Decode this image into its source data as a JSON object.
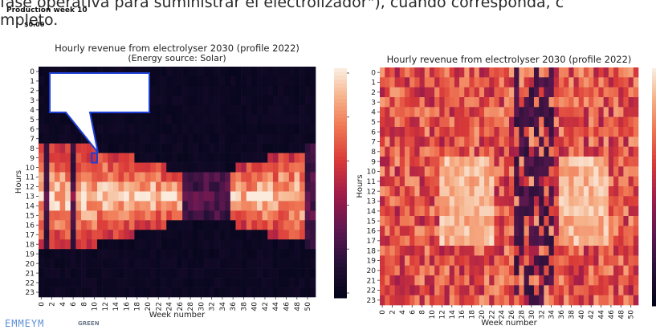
{
  "page": {
    "top_text_line1": "fase operativa para suministrar el electrolizador\"), cuando corresponda, c",
    "top_text_line2": "mpleto.",
    "logo_text": "EMMEYM",
    "logo_sub": "GREEN"
  },
  "tooltip": {
    "title": "Production week 10",
    "value": "$0.00"
  },
  "chart_data": [
    {
      "type": "heatmap",
      "title": "Hourly revenue from electrolyser 2030 (profile 2022)",
      "subtitle": "(Energy source: Solar)",
      "xlabel": "Week number",
      "ylabel": "Hours",
      "x_ticks": [
        "0",
        "2",
        "4",
        "6",
        "8",
        "10",
        "12",
        "14",
        "16",
        "18",
        "20",
        "22",
        "24",
        "26",
        "28",
        "30",
        "32",
        "34",
        "36",
        "38",
        "40",
        "42",
        "44",
        "46",
        "48",
        "50"
      ],
      "y_ticks": [
        "0",
        "1",
        "2",
        "3",
        "4",
        "5",
        "6",
        "7",
        "8",
        "9",
        "10",
        "11",
        "12",
        "13",
        "14",
        "15",
        "16",
        "17",
        "18",
        "19",
        "20",
        "21",
        "22",
        "23"
      ],
      "weeks": 52,
      "hours": 24,
      "highlight": {
        "week": 10,
        "hour": 9
      },
      "colormap": "rocket"
    },
    {
      "type": "heatmap",
      "title": "Hourly revenue from electrolyser 2030 (profile 2022)",
      "xlabel": "Week number",
      "ylabel": "Hours",
      "x_ticks": [
        "0",
        "2",
        "4",
        "6",
        "8",
        "10",
        "12",
        "14",
        "16",
        "18",
        "20",
        "22",
        "24",
        "26",
        "28",
        "30",
        "32",
        "34",
        "36",
        "38",
        "40",
        "42",
        "44",
        "46",
        "48",
        "50"
      ],
      "y_ticks": [
        "0",
        "1",
        "2",
        "3",
        "4",
        "5",
        "6",
        "7",
        "8",
        "9",
        "10",
        "11",
        "12",
        "13",
        "14",
        "15",
        "16",
        "17",
        "18",
        "19",
        "20",
        "21",
        "22",
        "23"
      ],
      "weeks": 52,
      "hours": 24,
      "colormap": "rocket"
    }
  ]
}
